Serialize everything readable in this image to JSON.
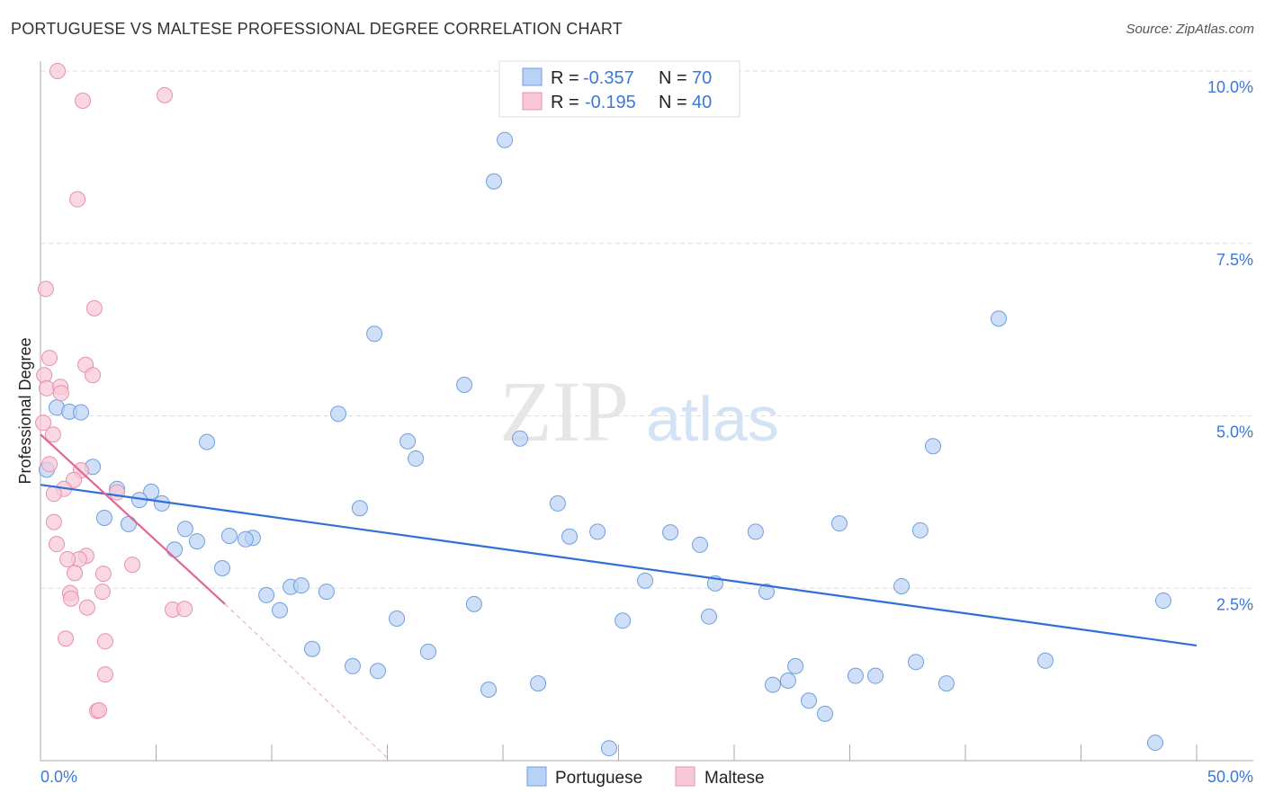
{
  "title": "PORTUGUESE VS MALTESE PROFESSIONAL DEGREE CORRELATION CHART",
  "source": "Source: ZipAtlas.com",
  "watermark": "ZIPatlas",
  "chart_data": {
    "type": "scatter",
    "title": "PORTUGUESE VS MALTESE PROFESSIONAL DEGREE CORRELATION CHART",
    "xlabel": "",
    "ylabel": "Professional Degree",
    "xlim": [
      0,
      50
    ],
    "ylim": [
      0,
      10
    ],
    "x_tick_labels": [
      "0.0%",
      "50.0%"
    ],
    "y_ticks": [
      2.5,
      5.0,
      7.5,
      10.0
    ],
    "y_tick_labels": [
      "2.5%",
      "5.0%",
      "7.5%",
      "10.0%"
    ],
    "grid": true,
    "legend_placement": "top-center",
    "legend": [
      {
        "r_label": "R =",
        "r": "-0.357",
        "n_label": "N =",
        "n": "70"
      },
      {
        "r_label": "R =",
        "r": "-0.195",
        "n_label": "N =",
        "n": "40"
      }
    ],
    "series": [
      {
        "name": "Portuguese",
        "color": "#6f9fe0",
        "fill": "#b9d1f3",
        "line_color": "#2f6fd6",
        "trend": {
          "x": [
            0,
            50
          ],
          "y": [
            4.0,
            1.67
          ]
        },
        "points": [
          [
            20.08,
            9.0
          ],
          [
            19.61,
            8.4
          ],
          [
            41.44,
            6.41
          ],
          [
            14.44,
            6.19
          ],
          [
            18.33,
            5.45
          ],
          [
            0.7,
            5.12
          ],
          [
            1.25,
            5.06
          ],
          [
            1.75,
            5.05
          ],
          [
            12.88,
            5.03
          ],
          [
            7.2,
            4.62
          ],
          [
            15.88,
            4.63
          ],
          [
            20.74,
            4.67
          ],
          [
            38.6,
            4.56
          ],
          [
            16.23,
            4.38
          ],
          [
            2.26,
            4.26
          ],
          [
            0.27,
            4.22
          ],
          [
            3.31,
            3.94
          ],
          [
            4.79,
            3.9
          ],
          [
            4.28,
            3.78
          ],
          [
            5.25,
            3.73
          ],
          [
            13.81,
            3.66
          ],
          [
            22.37,
            3.73
          ],
          [
            2.76,
            3.52
          ],
          [
            3.81,
            3.43
          ],
          [
            34.55,
            3.44
          ],
          [
            6.26,
            3.36
          ],
          [
            38.05,
            3.34
          ],
          [
            24.09,
            3.32
          ],
          [
            27.24,
            3.31
          ],
          [
            30.93,
            3.32
          ],
          [
            22.88,
            3.25
          ],
          [
            8.17,
            3.26
          ],
          [
            9.18,
            3.23
          ],
          [
            8.87,
            3.21
          ],
          [
            6.77,
            3.18
          ],
          [
            28.52,
            3.13
          ],
          [
            5.8,
            3.06
          ],
          [
            7.86,
            2.79
          ],
          [
            26.15,
            2.61
          ],
          [
            29.18,
            2.57
          ],
          [
            37.24,
            2.53
          ],
          [
            10.82,
            2.52
          ],
          [
            11.28,
            2.54
          ],
          [
            12.37,
            2.45
          ],
          [
            31.4,
            2.45
          ],
          [
            9.77,
            2.4
          ],
          [
            48.56,
            2.32
          ],
          [
            18.75,
            2.27
          ],
          [
            10.35,
            2.18
          ],
          [
            28.91,
            2.09
          ],
          [
            15.41,
            2.06
          ],
          [
            25.18,
            2.03
          ],
          [
            11.75,
            1.62
          ],
          [
            16.77,
            1.58
          ],
          [
            37.86,
            1.43
          ],
          [
            43.46,
            1.45
          ],
          [
            13.5,
            1.37
          ],
          [
            32.65,
            1.37
          ],
          [
            14.59,
            1.3
          ],
          [
            35.25,
            1.23
          ],
          [
            36.11,
            1.23
          ],
          [
            32.33,
            1.16
          ],
          [
            31.67,
            1.1
          ],
          [
            39.18,
            1.12
          ],
          [
            21.52,
            1.12
          ],
          [
            19.38,
            1.03
          ],
          [
            33.23,
            0.87
          ],
          [
            33.93,
            0.68
          ],
          [
            24.59,
            0.18
          ],
          [
            48.21,
            0.26
          ]
        ]
      },
      {
        "name": "Maltese",
        "color": "#e990ab",
        "fill": "#f8c8d7",
        "line_color": "#e4668f",
        "trend": {
          "x": [
            0,
            7.98
          ],
          "y": [
            4.73,
            2.27
          ],
          "dashed_to": [
            15.0,
            0.04
          ]
        },
        "points": [
          [
            0.74,
            10.0
          ],
          [
            1.83,
            9.57
          ],
          [
            5.37,
            9.65
          ],
          [
            1.6,
            8.14
          ],
          [
            0.23,
            6.84
          ],
          [
            2.33,
            6.56
          ],
          [
            0.39,
            5.84
          ],
          [
            1.95,
            5.74
          ],
          [
            2.26,
            5.59
          ],
          [
            0.16,
            5.59
          ],
          [
            0.27,
            5.4
          ],
          [
            0.86,
            5.42
          ],
          [
            0.89,
            5.33
          ],
          [
            0.12,
            4.9
          ],
          [
            0.54,
            4.73
          ],
          [
            0.39,
            4.3
          ],
          [
            1.75,
            4.21
          ],
          [
            1.44,
            4.07
          ],
          [
            1.01,
            3.94
          ],
          [
            0.58,
            3.87
          ],
          [
            3.31,
            3.89
          ],
          [
            0.58,
            3.46
          ],
          [
            0.7,
            3.14
          ],
          [
            1.98,
            2.97
          ],
          [
            1.67,
            2.92
          ],
          [
            1.17,
            2.92
          ],
          [
            1.48,
            2.72
          ],
          [
            2.72,
            2.71
          ],
          [
            3.97,
            2.84
          ],
          [
            1.28,
            2.43
          ],
          [
            2.68,
            2.45
          ],
          [
            1.32,
            2.35
          ],
          [
            2.02,
            2.22
          ],
          [
            5.72,
            2.19
          ],
          [
            6.23,
            2.2
          ],
          [
            1.09,
            1.77
          ],
          [
            2.8,
            1.73
          ],
          [
            2.8,
            1.25
          ],
          [
            2.45,
            0.72
          ],
          [
            2.53,
            0.73
          ]
        ]
      }
    ]
  }
}
